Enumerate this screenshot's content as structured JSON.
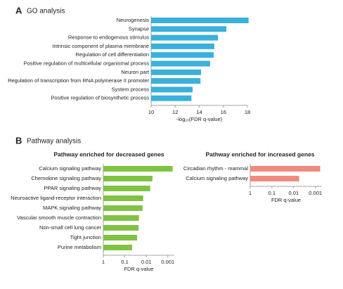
{
  "panels": [
    {
      "label": "A",
      "title": "GO analysis"
    },
    {
      "label": "B",
      "title": "Pathway analysis"
    }
  ],
  "chart_data": [
    {
      "type": "bar",
      "orientation": "horizontal",
      "color": "#3ab0dc",
      "x_label": "-log₁₀(FDR q-value)",
      "categories": [
        "Neurogenesis",
        "Synapse",
        "Response to endogenous stimulus",
        "Intrinsic component of plasma membrane",
        "Regulation of cell differentiation",
        "Positive regulation of multicellular organismal process",
        "Neuron part",
        "Regulation of transcription from RNA polymerase II promoter",
        "System process",
        "Positive regulation of biosynthetic process"
      ],
      "values": [
        18.1,
        16.25,
        15.55,
        15.25,
        15.2,
        14.9,
        14.15,
        14.1,
        13.45,
        13.35
      ],
      "xlim": [
        10,
        18
      ],
      "xticks": [
        10,
        12,
        14,
        16,
        18
      ],
      "log": false
    },
    {
      "type": "bar",
      "orientation": "horizontal",
      "color": "#80c342",
      "title": "Pathway enriched for decreased genes",
      "x_label": "FDR q-value",
      "categories": [
        "Calcium signaling pathway",
        "Chemokine signaling pathway",
        "PPAR signaling pathway",
        "Neuroactive ligand-receptor interaction",
        "MAPK signaling pathway",
        "Vascular smooth muscle contraction",
        "Non-small cell lung cancer",
        "Tight junction",
        "Purine metabolism"
      ],
      "values": [
        0.0006,
        0.0052,
        0.0066,
        0.014,
        0.015,
        0.022,
        0.023,
        0.027,
        0.046
      ],
      "xlim": [
        1,
        0.0005
      ],
      "xticks": [
        1,
        0.1,
        0.01,
        0.001
      ],
      "log": true
    },
    {
      "type": "bar",
      "orientation": "horizontal",
      "color": "#f08a7e",
      "title": "Pathway enriched for increased genes",
      "x_label": "FDR q-value",
      "categories": [
        "Circadian rhythm - mammal",
        "Calcium signaling pathway"
      ],
      "values": [
        0.0006,
        0.0056
      ],
      "xlim": [
        1,
        0.0005
      ],
      "xticks": [
        1,
        0.1,
        0.01,
        0.001
      ],
      "log": true
    }
  ]
}
